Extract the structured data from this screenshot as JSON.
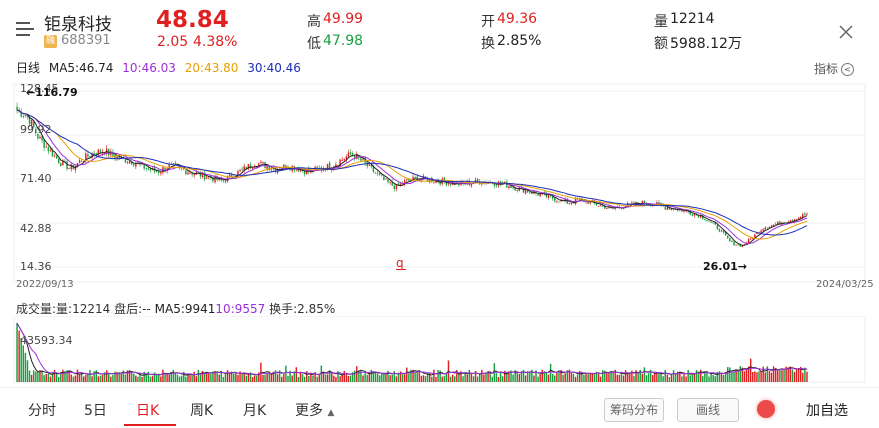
{
  "header": {
    "stock_name": "钜泉科技",
    "badge": "融",
    "stock_code": "688391",
    "price": "48.84",
    "change": "2.05",
    "change_pct": "4.38%",
    "high_label": "高",
    "high_value": "49.99",
    "low_label": "低",
    "low_value": "47.98",
    "open_label": "开",
    "open_value": "49.36",
    "turnover_label": "换",
    "turnover_value": "2.85%",
    "volume_label": "量",
    "volume_value": "12214",
    "amount_label": "额",
    "amount_value": "5988.12万"
  },
  "ma_bar": {
    "mode": "日线",
    "ma5": "MA5:46.74",
    "ma10": "10:46.03",
    "ma20": "20:43.80",
    "ma30": "30:40.46",
    "indicator_label": "指标"
  },
  "price_axis": {
    "labels": [
      "128.45",
      "99.92",
      "71.40",
      "42.88",
      "14.36"
    ]
  },
  "annotations": {
    "high_marker": "←116.79",
    "low_marker": "26.01→",
    "q_marker": "q"
  },
  "dates": {
    "start": "2022/09/13",
    "end": "2024/03/25"
  },
  "volume_bar": {
    "title": "成交量:",
    "vol": "量:12214",
    "after": "盘后:--",
    "ma5": "MA5:9941",
    "ma10": "10:9557",
    "turnover": "换手:2.85%",
    "axis_max": "43593.34"
  },
  "tabs": [
    "分时",
    "5日",
    "日K",
    "周K",
    "月K",
    "更多"
  ],
  "active_tab": "日K",
  "buttons": {
    "chip": "筹码分布",
    "draw": "画线",
    "add": "加自选"
  },
  "colors": {
    "up": "#e02020",
    "down": "#1a9e3f",
    "ma5": "#222222",
    "ma10": "#9b30d9",
    "ma20": "#e8a000",
    "ma30": "#1c2fb8"
  },
  "chart_data": {
    "type": "candlestick",
    "ylim": [
      14.36,
      128.45
    ],
    "y_ticks": [
      128.45,
      99.92,
      71.4,
      42.88,
      14.36
    ],
    "x_start": "2022/09/13",
    "x_end": "2024/03/25",
    "close_series_approx": [
      116,
      112,
      98,
      90,
      82,
      78,
      84,
      88,
      90,
      86,
      84,
      82,
      78,
      76,
      80,
      78,
      76,
      74,
      72,
      70,
      74,
      78,
      82,
      80,
      78,
      80,
      78,
      76,
      78,
      80,
      84,
      88,
      82,
      76,
      70,
      66,
      70,
      72,
      71,
      70,
      69,
      68,
      69,
      70,
      69,
      68,
      66,
      64,
      62,
      60,
      58,
      56,
      58,
      56,
      54,
      52,
      54,
      55,
      56,
      55,
      53,
      52,
      50,
      48,
      44,
      38,
      30,
      28,
      34,
      40,
      42,
      44,
      46,
      48.84
    ],
    "high": 116.79,
    "low": 26.01,
    "volume_max": 43593.34
  }
}
